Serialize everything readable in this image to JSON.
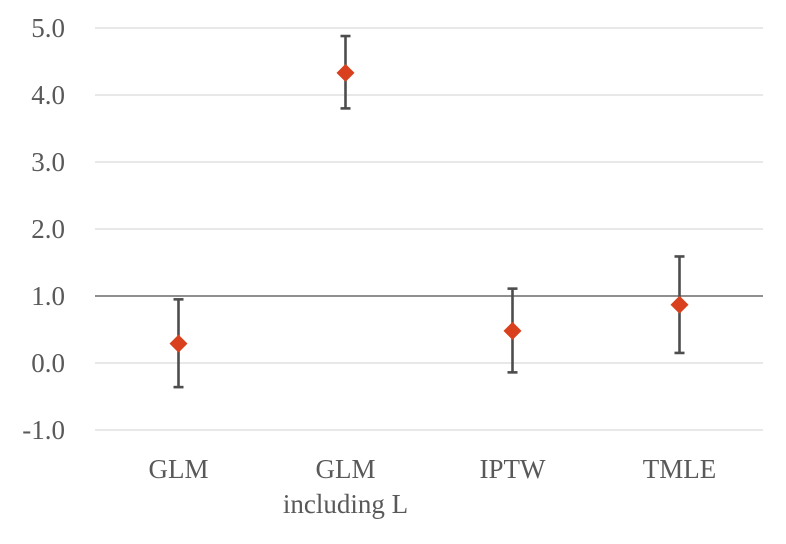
{
  "chart_data": {
    "type": "scatter",
    "title": "",
    "xlabel": "",
    "ylabel": "",
    "categories": [
      [
        "GLM"
      ],
      [
        "GLM",
        "including L"
      ],
      [
        "IPTW"
      ],
      [
        "TMLE"
      ]
    ],
    "series": [
      {
        "values": [
          0.29,
          4.33,
          0.48,
          0.87
        ],
        "lower": [
          -0.36,
          3.8,
          -0.14,
          0.15
        ],
        "upper": [
          0.95,
          4.88,
          1.11,
          1.59
        ]
      }
    ],
    "ylim": [
      -1.0,
      5.0
    ],
    "yticks": [
      "-1.0",
      "0.0",
      "1.0",
      "2.0",
      "3.0",
      "4.0",
      "5.0"
    ],
    "reference_line": 1.0,
    "grid": true,
    "legend": "none",
    "colors": {
      "marker": "#d9411e",
      "errorbar": "#4d4d4d",
      "gridline": "#d9d9d9",
      "reference": "#7f7f7f",
      "ticktext": "#595959"
    }
  }
}
